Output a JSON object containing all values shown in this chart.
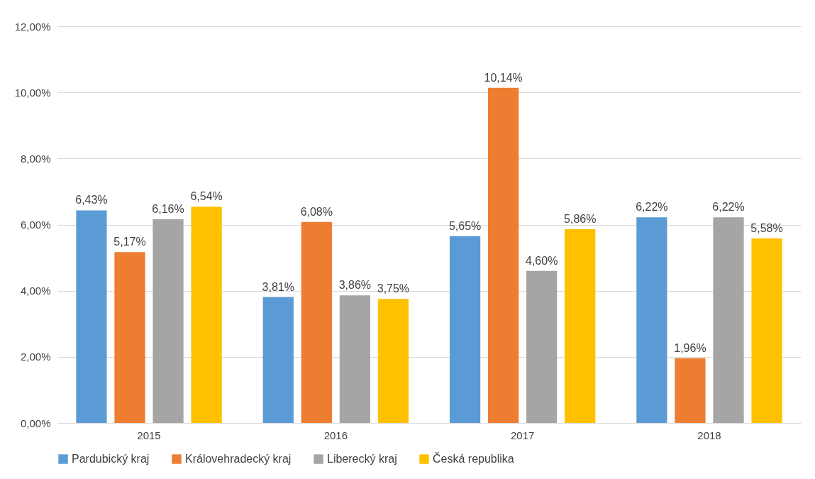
{
  "chart_data": {
    "type": "bar",
    "categories": [
      "2015",
      "2016",
      "2017",
      "2018"
    ],
    "series": [
      {
        "name": "Pardubický kraj",
        "color": "#5b9bd5",
        "values": [
          6.43,
          3.81,
          5.65,
          6.22
        ],
        "value_labels": [
          "6,43%",
          "3,81%",
          "5,65%",
          "6,22%"
        ]
      },
      {
        "name": "Královehradecký kraj",
        "color": "#ed7d31",
        "values": [
          5.17,
          6.08,
          10.14,
          1.96
        ],
        "value_labels": [
          "5,17%",
          "6,08%",
          "10,14%",
          "1,96%"
        ]
      },
      {
        "name": "Liberecký kraj",
        "color": "#a5a5a5",
        "values": [
          6.16,
          3.86,
          4.6,
          6.22
        ],
        "value_labels": [
          "6,16%",
          "3,86%",
          "4,60%",
          "6,22%"
        ]
      },
      {
        "name": "Česká republika",
        "color": "#ffc000",
        "values": [
          6.54,
          3.75,
          5.86,
          5.58
        ],
        "value_labels": [
          "6,54%",
          "3,75%",
          "5,86%",
          "5,58%"
        ]
      }
    ],
    "ylim": [
      0,
      12
    ],
    "yticks": [
      {
        "value": 0,
        "label": "0,00%"
      },
      {
        "value": 2,
        "label": "2,00%"
      },
      {
        "value": 4,
        "label": "4,00%"
      },
      {
        "value": 6,
        "label": "6,00%"
      },
      {
        "value": 8,
        "label": "8,00%"
      },
      {
        "value": 10,
        "label": "10,00%"
      },
      {
        "value": 12,
        "label": "12,00%"
      }
    ],
    "grid": "y",
    "legend": "bottom"
  }
}
